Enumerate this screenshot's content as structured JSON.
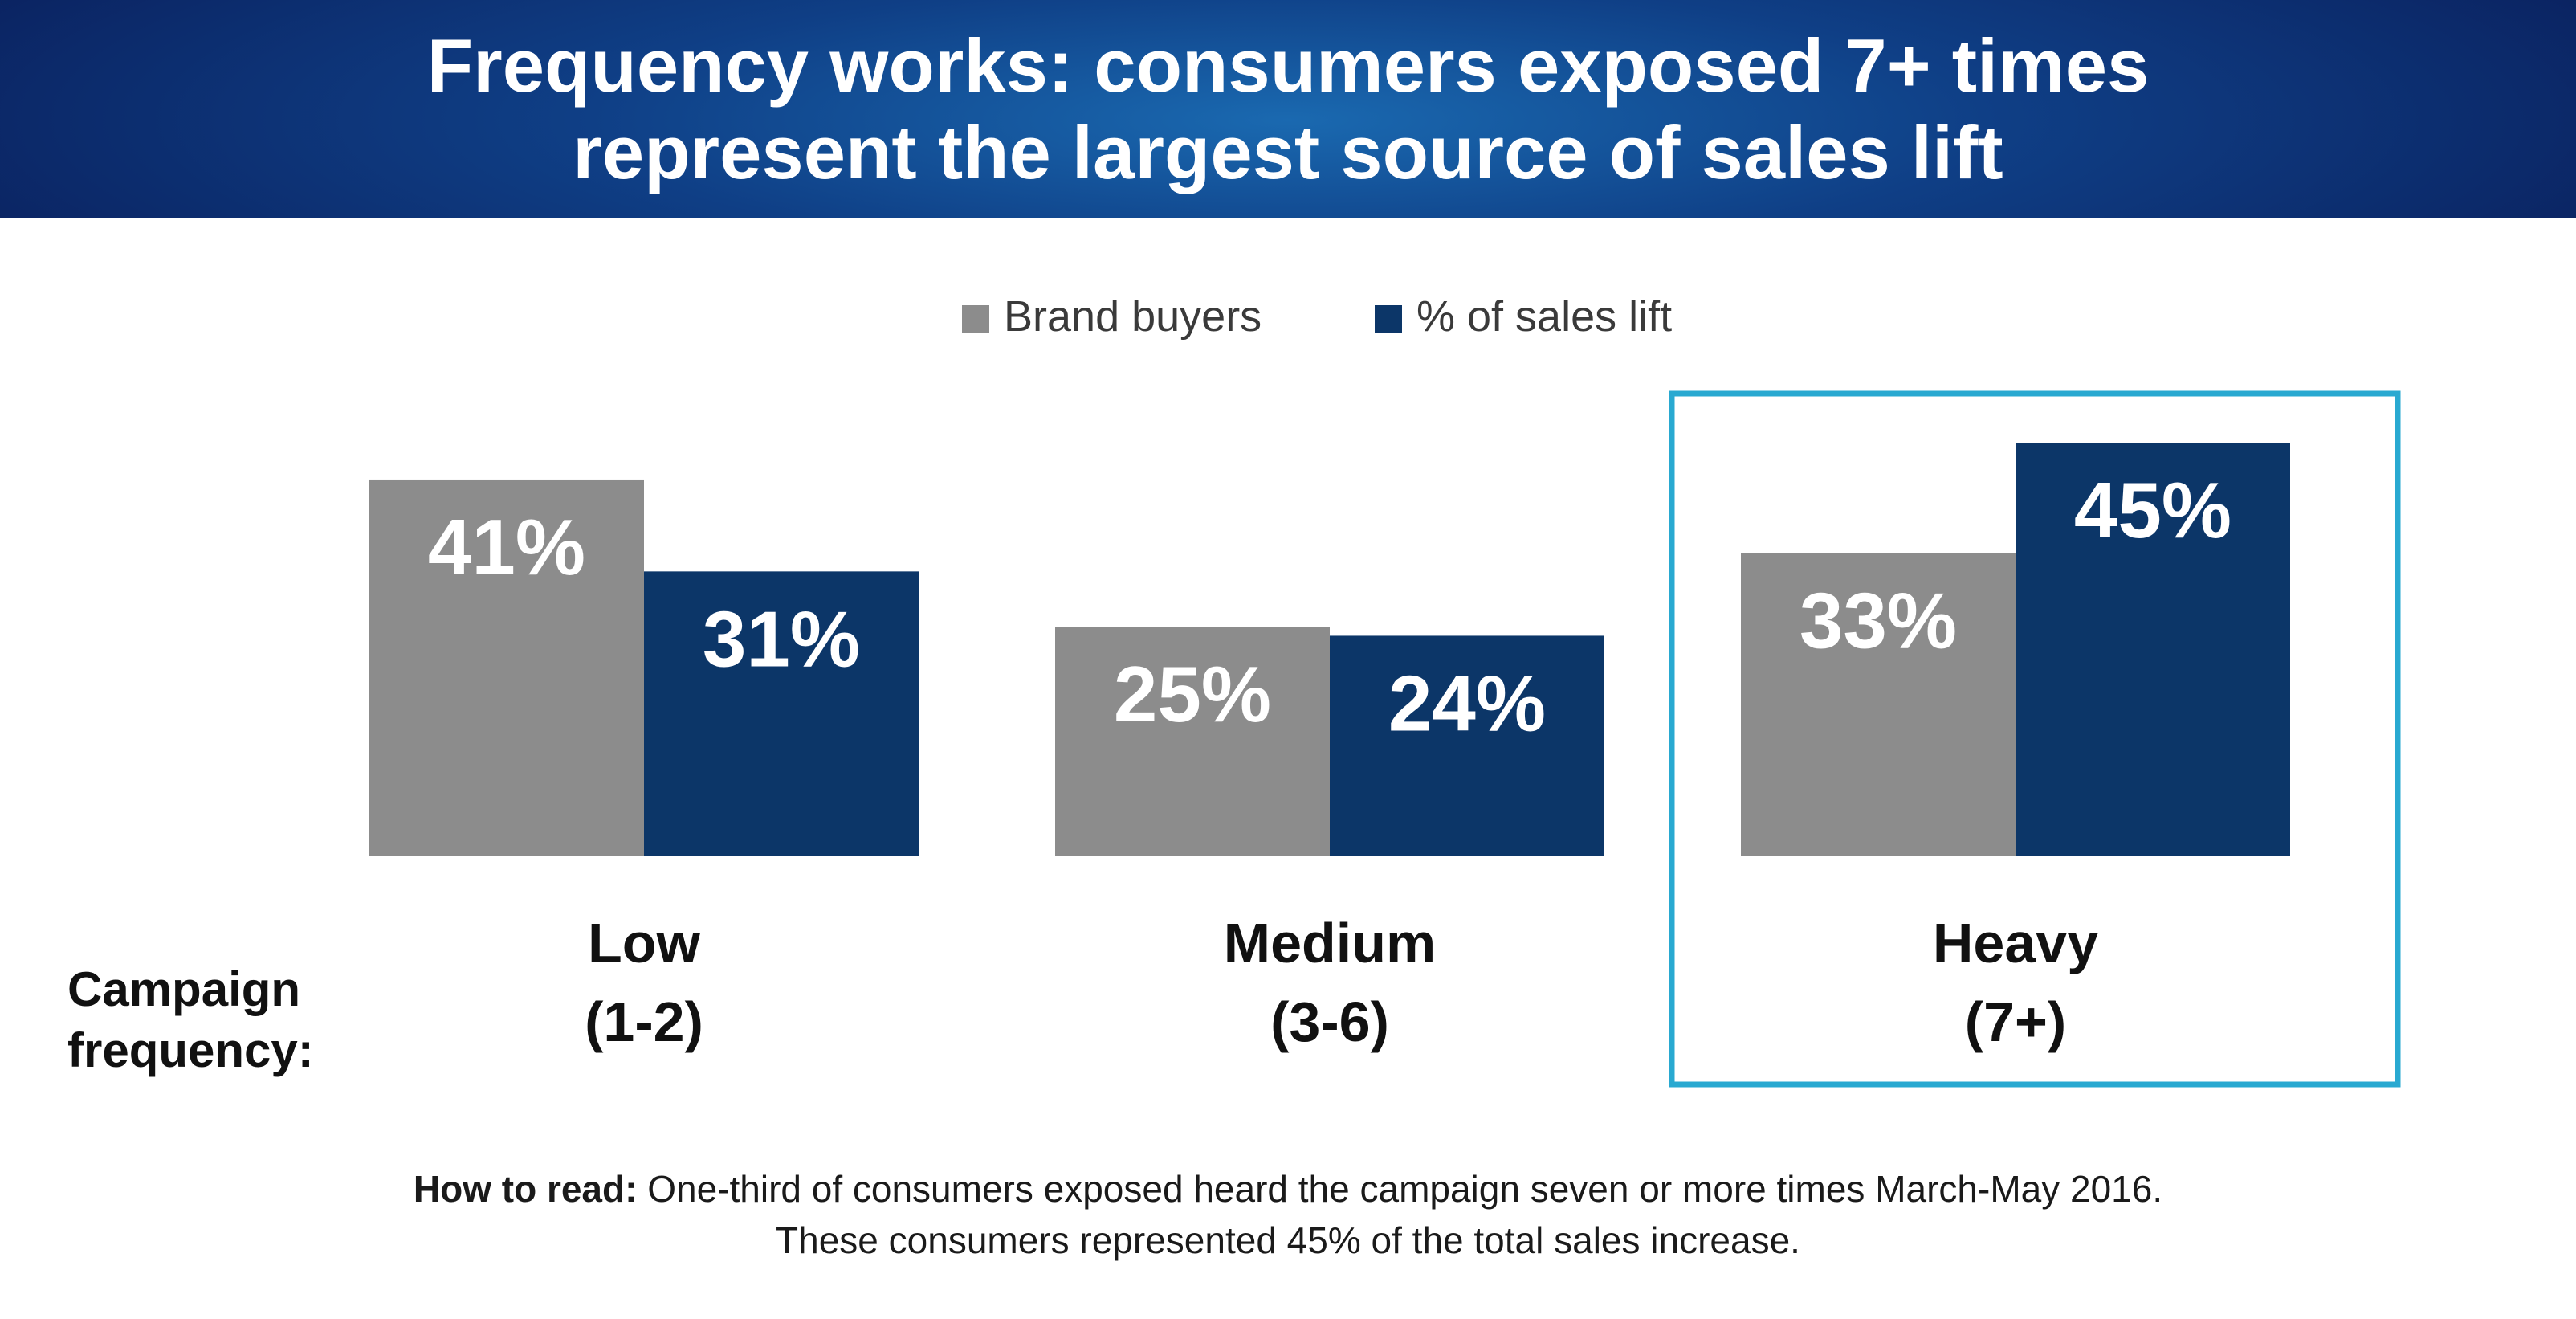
{
  "header": {
    "title_line1": "Frequency works: consumers exposed 7+ times",
    "title_line2": "represent the largest source of sales lift"
  },
  "chart_data": {
    "type": "bar",
    "categories": [
      "Low\n(1-2)",
      "Medium\n(3-6)",
      "Heavy\n(7+)"
    ],
    "series": [
      {
        "name": "Brand buyers",
        "values": [
          41,
          25,
          33
        ],
        "color": "#8c8c8c"
      },
      {
        "name": "% of sales lift",
        "values": [
          31,
          24,
          45
        ],
        "color": "#0c3668"
      }
    ],
    "data_labels": [
      [
        "41%",
        "25%",
        "33%"
      ],
      [
        "31%",
        "24%",
        "45%"
      ]
    ],
    "xlabel": "Campaign frequency:",
    "ylim": [
      0,
      50
    ],
    "legend_position": "top-center",
    "highlight_category": "Heavy\n(7+)",
    "highlight_color": "#29a9d1",
    "grid": false
  },
  "footnote": {
    "label": "How to read:",
    "line1": " One-third of consumers exposed heard the campaign seven or more times March-May 2016.",
    "line2": "These consumers represented 45% of the total sales increase."
  }
}
